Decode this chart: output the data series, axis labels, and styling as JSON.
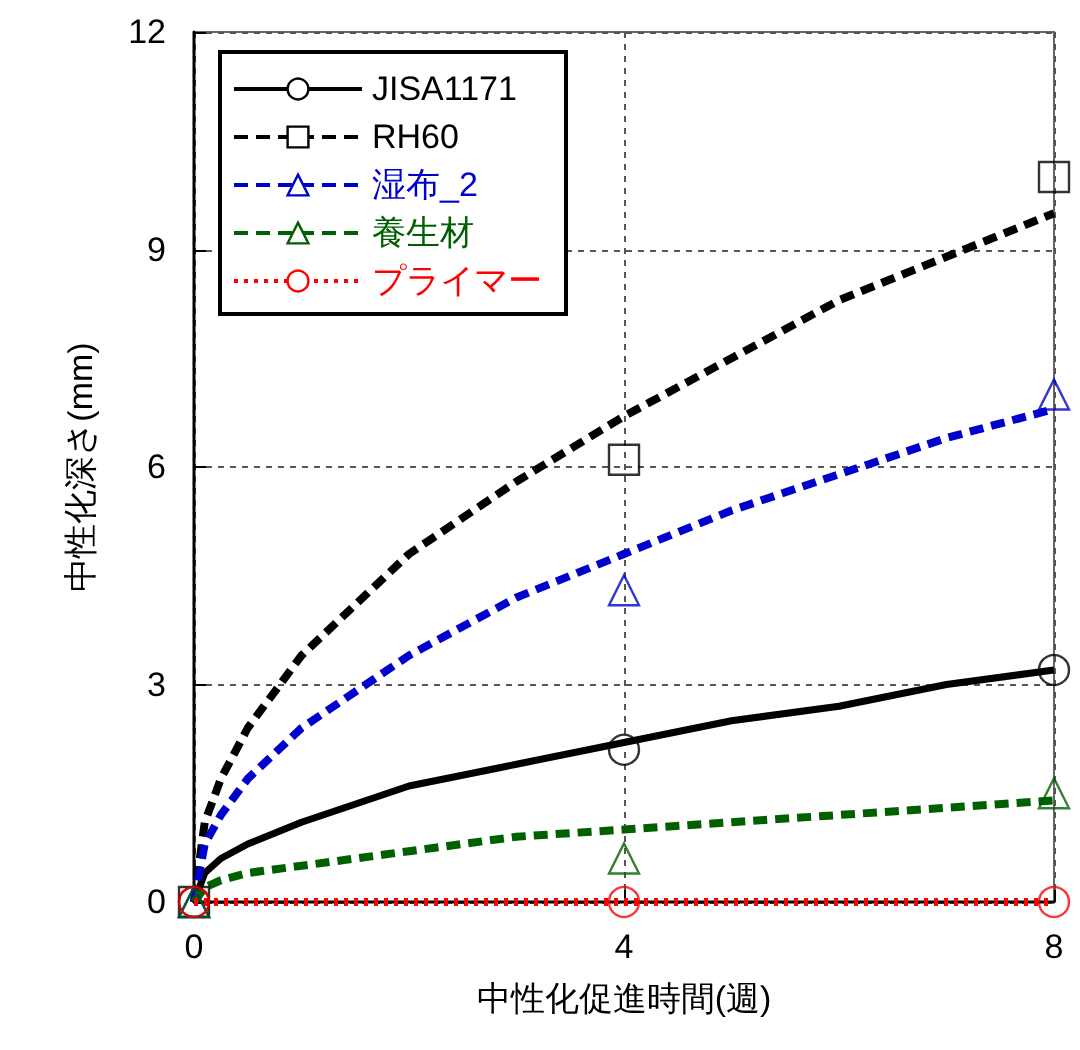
{
  "chart_data": {
    "type": "line",
    "xlabel": "中性化促進時間(週)",
    "ylabel": "中性化深さ(mm)",
    "xlim": [
      0,
      8
    ],
    "xticks": [
      0,
      4,
      8
    ],
    "ylim": [
      0,
      12
    ],
    "yticks": [
      0,
      3,
      6,
      9,
      12
    ],
    "grid": true,
    "legend": "top left",
    "series": [
      {
        "name": "JISA1171",
        "color": "#000000",
        "line_style": "solid",
        "x": [
          0,
          0.1,
          0.25,
          0.5,
          1,
          2,
          3,
          4,
          5,
          6,
          7,
          8
        ],
        "values": [
          0,
          0.4,
          0.6,
          0.8,
          1.1,
          1.6,
          1.9,
          2.2,
          2.5,
          2.7,
          3.0,
          3.2
        ]
      },
      {
        "type": "scatter",
        "color": "#000000",
        "marker": "circle",
        "x": [
          0,
          4,
          8
        ],
        "values": [
          0,
          2.1,
          3.2
        ]
      },
      {
        "name": "RH60",
        "color": "#000000",
        "line_style": "dashed",
        "x": [
          0,
          0.1,
          0.25,
          0.5,
          1,
          2,
          3,
          4,
          5,
          6,
          7,
          8
        ],
        "values": [
          0,
          1.1,
          1.7,
          2.4,
          3.4,
          4.8,
          5.8,
          6.7,
          7.5,
          8.3,
          8.9,
          9.5
        ]
      },
      {
        "type": "scatter",
        "color": "#000000",
        "marker": "square",
        "x": [
          0,
          4,
          8
        ],
        "values": [
          0,
          6.1,
          10.0
        ]
      },
      {
        "name": "湿布_2",
        "color": "#0000cc",
        "line_style": "dashed",
        "x": [
          0,
          0.1,
          0.25,
          0.5,
          1,
          2,
          3,
          4,
          5,
          6,
          7,
          8
        ],
        "values": [
          0,
          0.8,
          1.2,
          1.7,
          2.4,
          3.4,
          4.2,
          4.8,
          5.4,
          5.9,
          6.4,
          6.8
        ]
      },
      {
        "type": "scatter",
        "color": "#0000cc",
        "marker": "triangle",
        "x": [
          0,
          4,
          8
        ],
        "values": [
          0,
          4.3,
          7.0
        ]
      },
      {
        "name": "養生材",
        "color": "#006000",
        "line_style": "dashed",
        "x": [
          0,
          0.1,
          0.25,
          0.5,
          1,
          2,
          3,
          4,
          5,
          6,
          7,
          8
        ],
        "values": [
          0,
          0.2,
          0.3,
          0.4,
          0.5,
          0.7,
          0.9,
          1.0,
          1.1,
          1.2,
          1.3,
          1.4
        ]
      },
      {
        "type": "scatter",
        "color": "#006000",
        "marker": "triangle",
        "x": [
          0,
          4,
          8
        ],
        "values": [
          0,
          0.6,
          1.5
        ]
      },
      {
        "name": "プライマー",
        "color": "#ff0000",
        "line_style": "dotted",
        "x": [
          0,
          8
        ],
        "values": [
          0,
          0
        ]
      },
      {
        "type": "scatter",
        "color": "#ff0000",
        "marker": "circle",
        "x": [
          0,
          4,
          8
        ],
        "values": [
          0,
          0,
          0
        ]
      }
    ]
  }
}
